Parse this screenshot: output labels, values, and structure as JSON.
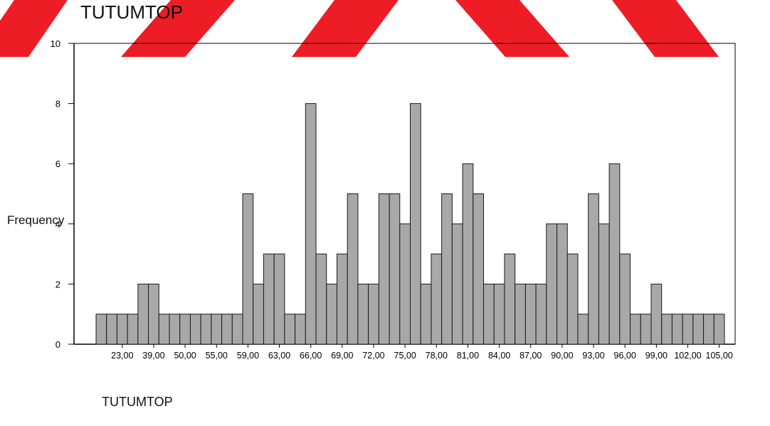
{
  "chart_data": {
    "type": "bar",
    "title": "TUTUMTOP",
    "xlabel": "TUTUMTOP",
    "ylabel": "Frequency",
    "ylim": [
      0,
      10
    ],
    "yticks": [
      "0",
      "2",
      "4",
      "6",
      "8",
      "10"
    ],
    "xtick_labels": [
      "23,00",
      "39,00",
      "50,00",
      "55,00",
      "59,00",
      "63,00",
      "66,00",
      "69,00",
      "72,00",
      "75,00",
      "78,00",
      "81,00",
      "84,00",
      "87,00",
      "90,00",
      "93,00",
      "96,00",
      "99,00",
      "102,00",
      "105,00"
    ],
    "values": [
      1,
      1,
      1,
      1,
      2,
      2,
      1,
      1,
      1,
      1,
      1,
      1,
      1,
      1,
      5,
      2,
      3,
      3,
      1,
      1,
      8,
      3,
      2,
      3,
      5,
      2,
      2,
      5,
      5,
      4,
      8,
      2,
      3,
      5,
      4,
      6,
      5,
      2,
      2,
      3,
      2,
      2,
      2,
      4,
      4,
      3,
      1,
      5,
      4,
      6,
      3,
      1,
      1,
      2,
      1,
      1,
      1,
      1,
      1,
      1
    ],
    "grid": false,
    "legend": "none",
    "bar_color": "#a8a8a8",
    "watermark_color": "#ee1c24"
  }
}
